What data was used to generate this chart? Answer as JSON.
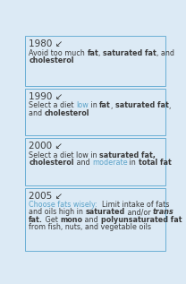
{
  "background_color": "#dceaf5",
  "box_color": "#dceaf5",
  "border_color": "#6aafd4",
  "text_color": "#3a3a3a",
  "blue_color": "#5ba3c9",
  "figsize": [
    2.08,
    3.17
  ],
  "dpi": 100,
  "boxes": [
    {
      "year": "1980 ↙",
      "lines": [
        [
          {
            "text": "Avoid too much ",
            "bold": false,
            "italic": false,
            "blue": false
          },
          {
            "text": "fat",
            "bold": true,
            "italic": false,
            "blue": false
          },
          {
            "text": ", ",
            "bold": false,
            "italic": false,
            "blue": false
          },
          {
            "text": "saturated fat",
            "bold": true,
            "italic": false,
            "blue": false
          },
          {
            "text": ", and",
            "bold": false,
            "italic": false,
            "blue": false
          }
        ],
        [
          {
            "text": "cholesterol",
            "bold": true,
            "italic": false,
            "blue": false
          }
        ]
      ]
    },
    {
      "year": "1990 ↙",
      "lines": [
        [
          {
            "text": "Select a diet ",
            "bold": false,
            "italic": false,
            "blue": false
          },
          {
            "text": "low",
            "bold": false,
            "italic": false,
            "blue": true
          },
          {
            "text": " in ",
            "bold": false,
            "italic": false,
            "blue": false
          },
          {
            "text": "fat",
            "bold": true,
            "italic": false,
            "blue": false
          },
          {
            "text": ", ",
            "bold": false,
            "italic": false,
            "blue": false
          },
          {
            "text": "saturated fat",
            "bold": true,
            "italic": false,
            "blue": false
          },
          {
            "text": ",",
            "bold": false,
            "italic": false,
            "blue": false
          }
        ],
        [
          {
            "text": "and ",
            "bold": false,
            "italic": false,
            "blue": false
          },
          {
            "text": "cholesterol",
            "bold": true,
            "italic": false,
            "blue": false
          }
        ]
      ]
    },
    {
      "year": "2000 ↙",
      "lines": [
        [
          {
            "text": "Select a diet low in ",
            "bold": false,
            "italic": false,
            "blue": false
          },
          {
            "text": "saturated fat,",
            "bold": true,
            "italic": false,
            "blue": false
          }
        ],
        [
          {
            "text": "cholesterol",
            "bold": true,
            "italic": false,
            "blue": false
          },
          {
            "text": " and ",
            "bold": false,
            "italic": false,
            "blue": false
          },
          {
            "text": "moderate",
            "bold": false,
            "italic": false,
            "blue": true
          },
          {
            "text": " in ",
            "bold": false,
            "italic": false,
            "blue": false
          },
          {
            "text": "total fat",
            "bold": true,
            "italic": false,
            "blue": false
          }
        ]
      ]
    },
    {
      "year": "2005 ↙",
      "lines": [
        [
          {
            "text": "Choose fats wisely:",
            "bold": false,
            "italic": false,
            "blue": true
          },
          {
            "text": "  Limit intake of fats",
            "bold": false,
            "italic": false,
            "blue": false
          }
        ],
        [
          {
            "text": "and oils high in ",
            "bold": false,
            "italic": false,
            "blue": false
          },
          {
            "text": "saturated",
            "bold": true,
            "italic": false,
            "blue": false
          },
          {
            "text": " and/or ",
            "bold": false,
            "italic": false,
            "blue": false
          },
          {
            "text": "trans",
            "bold": true,
            "italic": true,
            "blue": false
          }
        ],
        [
          {
            "text": "fat.",
            "bold": true,
            "italic": false,
            "blue": false
          },
          {
            "text": " Get ",
            "bold": false,
            "italic": false,
            "blue": false
          },
          {
            "text": "mono",
            "bold": true,
            "italic": false,
            "blue": false
          },
          {
            "text": " and ",
            "bold": false,
            "italic": false,
            "blue": false
          },
          {
            "text": "polyunsaturated fat",
            "bold": true,
            "italic": false,
            "blue": false
          }
        ],
        [
          {
            "text": "from fish, nuts, and vegetable oils",
            "bold": false,
            "italic": false,
            "blue": false
          }
        ]
      ]
    }
  ]
}
